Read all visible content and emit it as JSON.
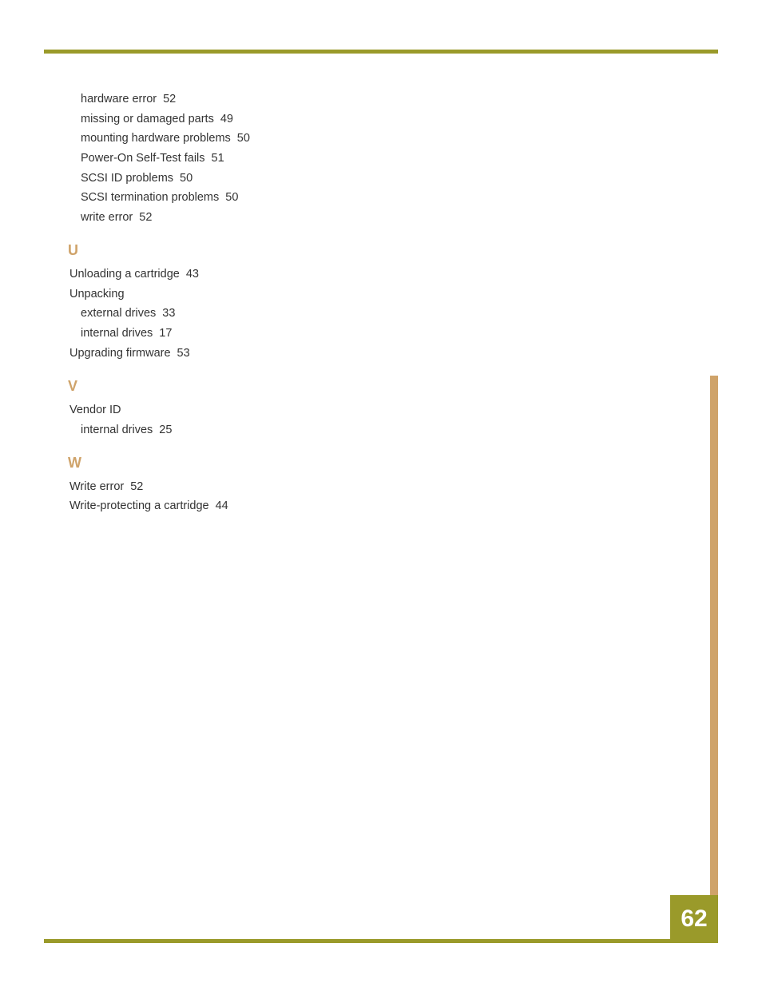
{
  "page_number": "62",
  "colors": {
    "top_bar": "#9a9a2a",
    "bottom_bar": "#9a9a2a",
    "right_bar": "#cfa36a",
    "badge_bg": "#9a9a2a",
    "badge_text": "#ffffff",
    "section_letter": "#cfa36a",
    "body_text": "#333333"
  },
  "continuation": [
    {
      "label": "hardware error",
      "page": "52"
    },
    {
      "label": "missing or damaged parts",
      "page": "49"
    },
    {
      "label": "mounting hardware problems",
      "page": "50"
    },
    {
      "label": "Power-On Self-Test fails",
      "page": "51"
    },
    {
      "label": "SCSI ID problems",
      "page": "50"
    },
    {
      "label": "SCSI termination problems",
      "page": "50"
    },
    {
      "label": "write error",
      "page": "52"
    }
  ],
  "sections": {
    "U": {
      "letter": "U",
      "entries": [
        {
          "level": 1,
          "label": "Unloading a cartridge",
          "page": "43"
        },
        {
          "level": 1,
          "label": "Unpacking",
          "page": ""
        },
        {
          "level": 2,
          "label": "external drives",
          "page": "33"
        },
        {
          "level": 2,
          "label": "internal drives",
          "page": "17"
        },
        {
          "level": 1,
          "label": "Upgrading firmware",
          "page": "53"
        }
      ]
    },
    "V": {
      "letter": "V",
      "entries": [
        {
          "level": 1,
          "label": "Vendor ID",
          "page": ""
        },
        {
          "level": 2,
          "label": "internal drives",
          "page": "25"
        }
      ]
    },
    "W": {
      "letter": "W",
      "entries": [
        {
          "level": 1,
          "label": "Write error",
          "page": "52"
        },
        {
          "level": 1,
          "label": "Write-protecting a cartridge",
          "page": "44"
        }
      ]
    }
  }
}
